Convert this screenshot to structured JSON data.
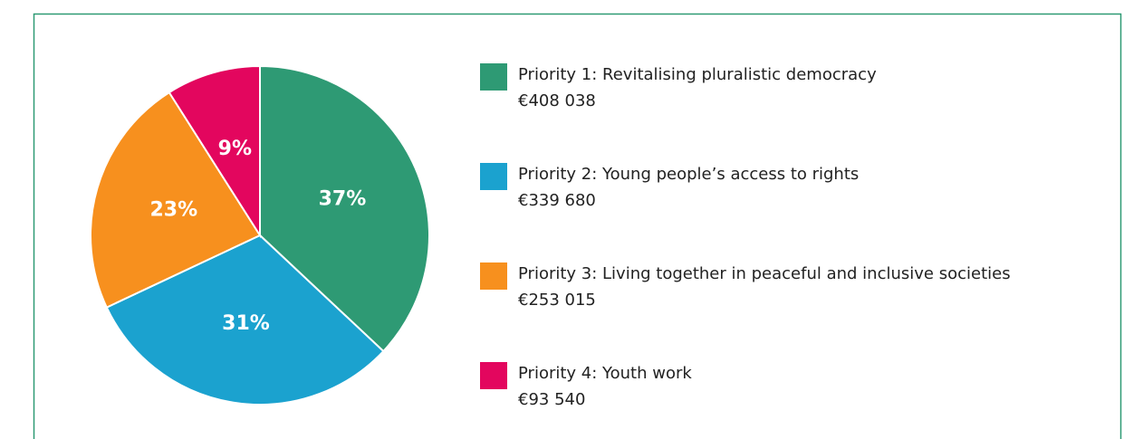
{
  "chart_data": {
    "type": "pie",
    "categories": [
      "Priority 1: Revitalising pluralistic democracy",
      "Priority 2: Young people’s access to rights",
      "Priority 3: Living together in peaceful and inclusive societies",
      "Priority 4: Youth work"
    ],
    "values": [
      37,
      31,
      23,
      9
    ],
    "value_labels": [
      "37%",
      "31%",
      "23%",
      "9%"
    ],
    "amounts": [
      408038,
      339680,
      253015,
      93540
    ],
    "amount_labels": [
      "€408 038",
      "€339 680",
      "€253 015",
      "€93 540"
    ],
    "colors": [
      "#2e9a74",
      "#1ba2cf",
      "#f7901e",
      "#e3065e"
    ]
  }
}
